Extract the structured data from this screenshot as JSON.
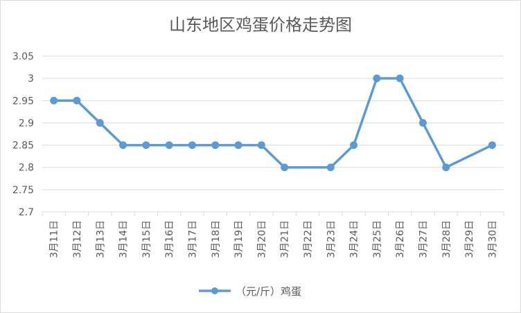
{
  "chart_data": {
    "type": "line",
    "title": "山东地区鸡蛋价格走势图",
    "categories": [
      "3月11日",
      "3月12日",
      "3月13日",
      "3月14日",
      "3月15日",
      "3月16日",
      "3月17日",
      "3月18日",
      "3月19日",
      "3月20日",
      "3月21日",
      "3月22日",
      "3月23日",
      "3月24日",
      "3月25日",
      "3月26日",
      "3月27日",
      "3月28日",
      "3月29日",
      "3月30日"
    ],
    "series": [
      {
        "name": "（元/斤）鸡蛋",
        "values": [
          2.95,
          2.95,
          2.9,
          2.85,
          2.85,
          2.85,
          2.85,
          2.85,
          2.85,
          2.85,
          2.8,
          null,
          2.8,
          2.85,
          3.0,
          3.0,
          2.9,
          2.8,
          null,
          2.85
        ],
        "color": "#5B9BD5"
      }
    ],
    "yticks": [
      "2.7",
      "2.75",
      "2.8",
      "2.85",
      "2.9",
      "2.95",
      "3",
      "3.05"
    ],
    "ylim": [
      2.7,
      3.05
    ],
    "grid": "horizontal",
    "legend_position": "bottom",
    "gridline_color": "#d9d9d9",
    "text_color": "#595959"
  }
}
